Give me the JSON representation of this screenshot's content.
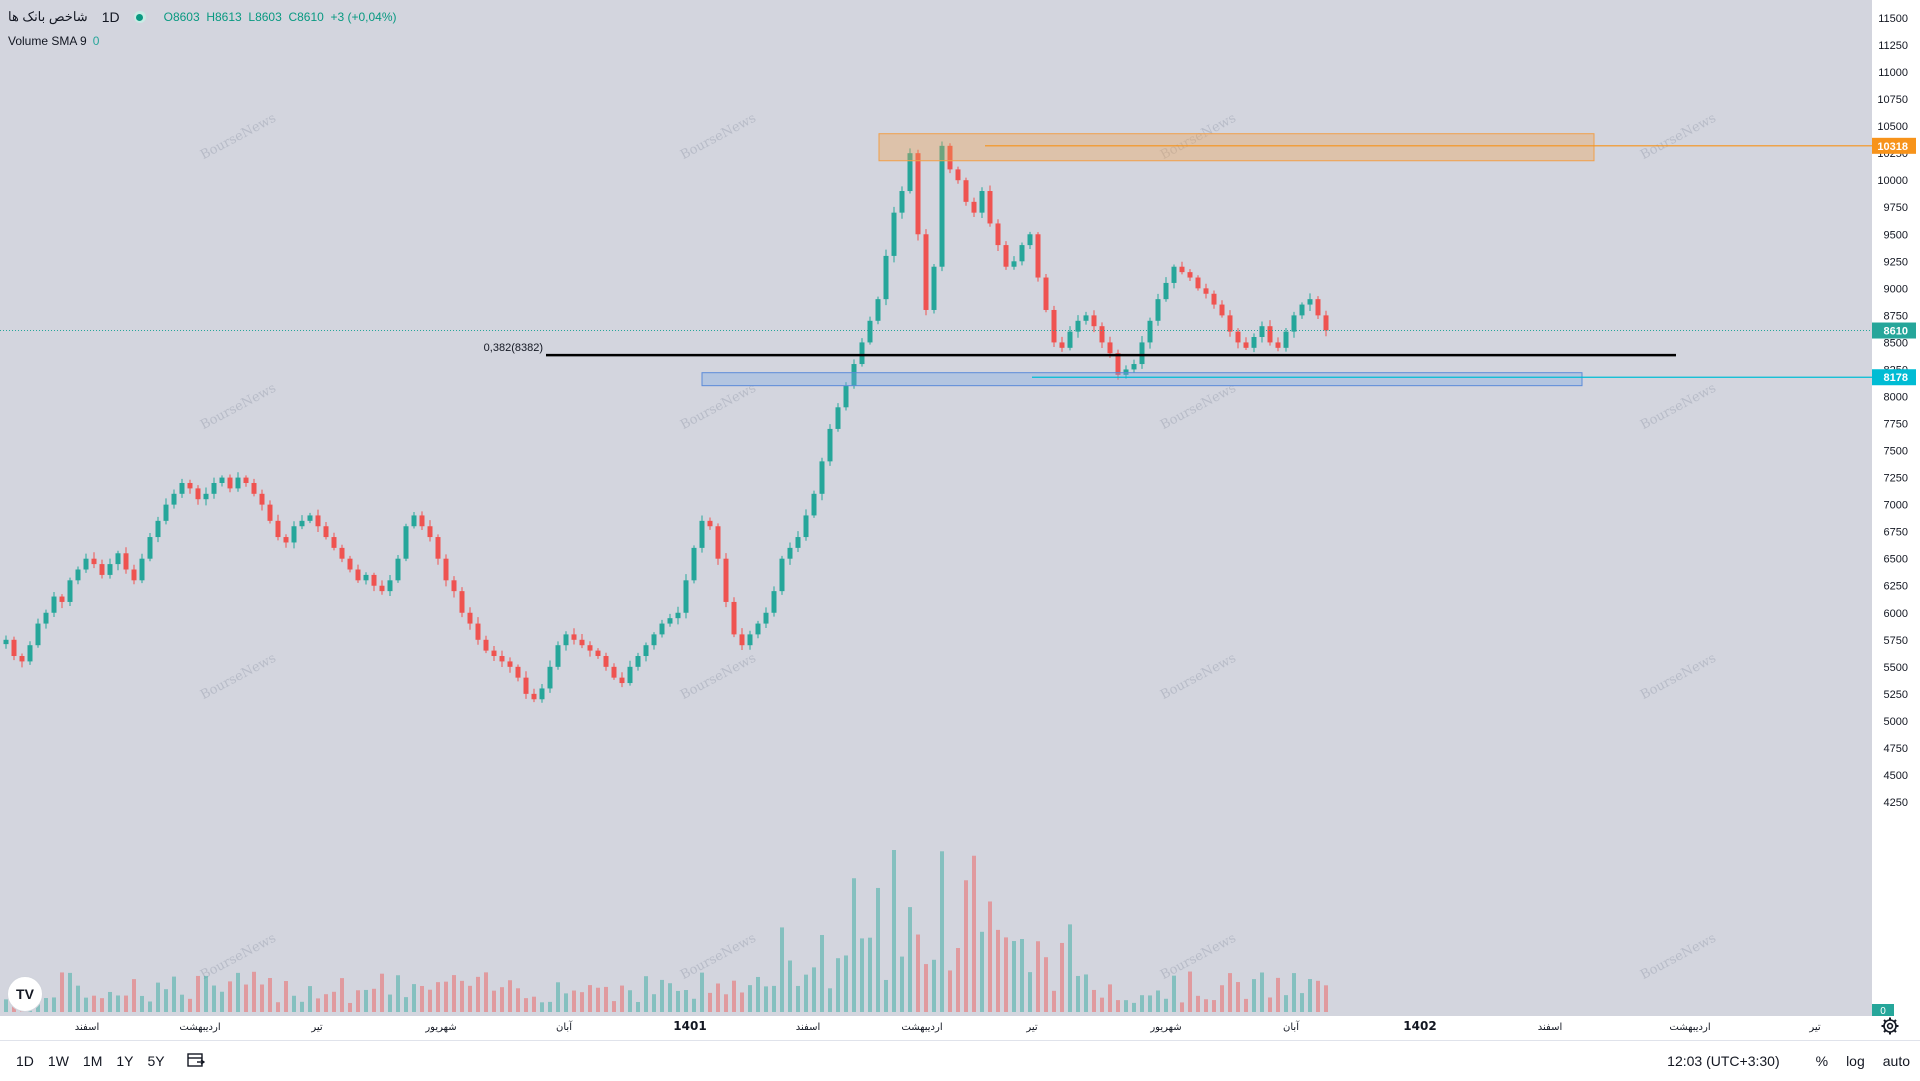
{
  "symbol": {
    "name": "شاخص بانک ها",
    "timeframe": "1D",
    "ohlc": {
      "open_label": "O",
      "open": "8603",
      "high_label": "H",
      "high": "8613",
      "low_label": "L",
      "low": "8603",
      "close_label": "C",
      "close": "8610",
      "change": "+3 (+0,04%)"
    }
  },
  "indicator": {
    "name": "Volume SMA 9",
    "value": "0"
  },
  "watermark": "BourseNews",
  "price_axis": {
    "ticks": [
      "11500",
      "11250",
      "11000",
      "10750",
      "10500",
      "10250",
      "10000",
      "9750",
      "9500",
      "9250",
      "9000",
      "8750",
      "8500",
      "8250",
      "8000",
      "7750",
      "7500",
      "7250",
      "7000",
      "6750",
      "6500",
      "6250",
      "6000",
      "5750",
      "5500",
      "5250",
      "5000",
      "4750",
      "4500",
      "4250"
    ],
    "last_price_label": "8610",
    "zone_top_label": "10318",
    "zone_bottom_label": "8178",
    "volume_label": "0"
  },
  "time_axis": {
    "labels": [
      "اسفند",
      "اردیبهشت",
      "تیر",
      "شهریور",
      "آبان",
      "1401",
      "اسفند",
      "اردیبهشت",
      "تیر",
      "شهریور",
      "آبان",
      "1402",
      "اسفند",
      "اردیبهشت",
      "تیر"
    ]
  },
  "fib_label": "0,382(8382)",
  "colors": {
    "up": "#26a69a",
    "down": "#ef5350",
    "zone_orange": "#f0a04b",
    "zone_blue": "#5b8bd9",
    "last_price": "#26a69a",
    "zone_top": "#f7931a",
    "zone_bottom": "#00bcd4",
    "fib_line": "#000000"
  },
  "bottom_toolbar": {
    "ranges": [
      "1D",
      "1W",
      "1M",
      "1Y",
      "5Y"
    ],
    "time": "12:03 (UTC+3:30)",
    "percent": "%",
    "log": "log",
    "auto": "auto"
  },
  "chart_data": {
    "type": "candlestick",
    "series": [
      {
        "name": "شاخص بانک ها",
        "values": [
          5750,
          5600,
          5550,
          5700,
          5900,
          6000,
          6150,
          6100,
          6300,
          6400,
          6500,
          6450,
          6350,
          6450,
          6550,
          6400,
          6300,
          6500,
          6700,
          6850,
          7000,
          7100,
          7200,
          7150,
          7050,
          7100,
          7200,
          7250,
          7150,
          7250,
          7200,
          7100,
          7000,
          6850,
          6700,
          6650,
          6800,
          6850,
          6900,
          6800,
          6700,
          6600,
          6500,
          6400,
          6300,
          6350,
          6250,
          6200,
          6300,
          6500,
          6800,
          6900,
          6800,
          6700,
          6500,
          6300,
          6200,
          6000,
          5900,
          5750,
          5650,
          5600,
          5550,
          5500,
          5400,
          5250,
          5200,
          5300,
          5500,
          5700,
          5800,
          5750,
          5700,
          5650,
          5600,
          5500,
          5400,
          5350,
          5500,
          5600,
          5700,
          5800,
          5900,
          5950,
          6000,
          6300,
          6600,
          6850,
          6800,
          6500,
          6100,
          5800,
          5700,
          5800,
          5900,
          6000,
          6200,
          6500,
          6600,
          6700,
          6900,
          7100,
          7400,
          7700,
          7900,
          8100,
          8300,
          8500,
          8700,
          8900,
          9300,
          9700,
          9900,
          10250,
          9500,
          8800,
          9200,
          10318,
          10100,
          10000,
          9800,
          9700,
          9900,
          9600,
          9400,
          9200,
          9250,
          9400,
          9500,
          9100,
          8800,
          8500,
          8450,
          8600,
          8700,
          8750,
          8650,
          8500,
          8400,
          8200,
          8250,
          8300,
          8500,
          8700,
          8900,
          9050,
          9200,
          9150,
          9100,
          9000,
          8950,
          8850,
          8750,
          8600,
          8500,
          8450,
          8550,
          8650,
          8500,
          8450,
          8600,
          8750,
          8850,
          8900,
          8750,
          8610
        ]
      }
    ],
    "zones": [
      {
        "label": "10318",
        "from": 10180,
        "to": 10430
      },
      {
        "label": "8178",
        "from": 8100,
        "to": 8220
      }
    ],
    "horizontal_levels": [
      {
        "label": "0,382(8382)",
        "value": 8382
      }
    ],
    "ylim": [
      4100,
      11650
    ],
    "grid": false
  }
}
